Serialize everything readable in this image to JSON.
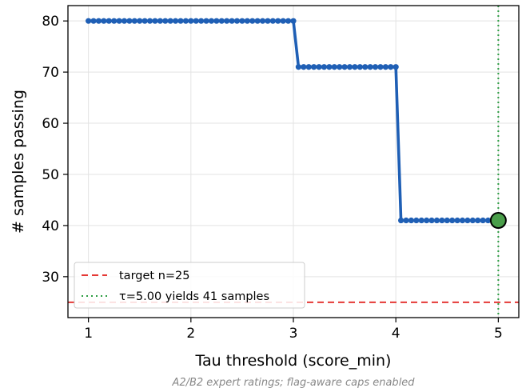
{
  "chart_data": {
    "type": "line",
    "title": "",
    "xlabel": "Tau threshold (score_min)",
    "ylabel": "# samples passing",
    "xlim": [
      0.8,
      5.2
    ],
    "ylim": [
      22,
      83
    ],
    "xticks": [
      "1",
      "2",
      "3",
      "4",
      "5"
    ],
    "yticks": [
      "30",
      "40",
      "50",
      "60",
      "70",
      "80"
    ],
    "grid": true,
    "legend_position": "lower-left",
    "series": [
      {
        "name": "",
        "color": "#1f5fb5",
        "x": [
          1.0,
          1.05,
          1.1,
          1.15,
          1.2,
          1.25,
          1.3,
          1.35,
          1.4,
          1.45,
          1.5,
          1.55,
          1.6,
          1.65,
          1.7,
          1.75,
          1.8,
          1.85,
          1.9,
          1.95,
          2.0,
          2.05,
          2.1,
          2.15,
          2.2,
          2.25,
          2.3,
          2.35,
          2.4,
          2.45,
          2.5,
          2.55,
          2.6,
          2.65,
          2.7,
          2.75,
          2.8,
          2.85,
          2.9,
          2.95,
          3.0,
          3.05,
          3.1,
          3.15,
          3.2,
          3.25,
          3.3,
          3.35,
          3.4,
          3.45,
          3.5,
          3.55,
          3.6,
          3.65,
          3.7,
          3.75,
          3.8,
          3.85,
          3.9,
          3.95,
          4.0,
          4.05,
          4.1,
          4.15,
          4.2,
          4.25,
          4.3,
          4.35,
          4.4,
          4.45,
          4.5,
          4.55,
          4.6,
          4.65,
          4.7,
          4.75,
          4.8,
          4.85,
          4.9,
          4.95,
          5.0
        ],
        "y": [
          80,
          80,
          80,
          80,
          80,
          80,
          80,
          80,
          80,
          80,
          80,
          80,
          80,
          80,
          80,
          80,
          80,
          80,
          80,
          80,
          80,
          80,
          80,
          80,
          80,
          80,
          80,
          80,
          80,
          80,
          80,
          80,
          80,
          80,
          80,
          80,
          80,
          80,
          80,
          80,
          80,
          71,
          71,
          71,
          71,
          71,
          71,
          71,
          71,
          71,
          71,
          71,
          71,
          71,
          71,
          71,
          71,
          71,
          71,
          71,
          71,
          41,
          41,
          41,
          41,
          41,
          41,
          41,
          41,
          41,
          41,
          41,
          41,
          41,
          41,
          41,
          41,
          41,
          41,
          41,
          41
        ]
      }
    ],
    "reference_lines": [
      {
        "orientation": "horizontal",
        "value": 25,
        "style": "dashed",
        "color": "#e53935",
        "label": "target n=25"
      },
      {
        "orientation": "vertical",
        "value": 5.0,
        "style": "dotted",
        "color": "#2e9e44",
        "label": "τ=5.00 yields 41 samples"
      }
    ],
    "highlight_point": {
      "x": 5.0,
      "y": 41,
      "color": "#4a9e4a"
    },
    "footnote": "A2/B2 expert ratings; flag-aware caps enabled"
  }
}
